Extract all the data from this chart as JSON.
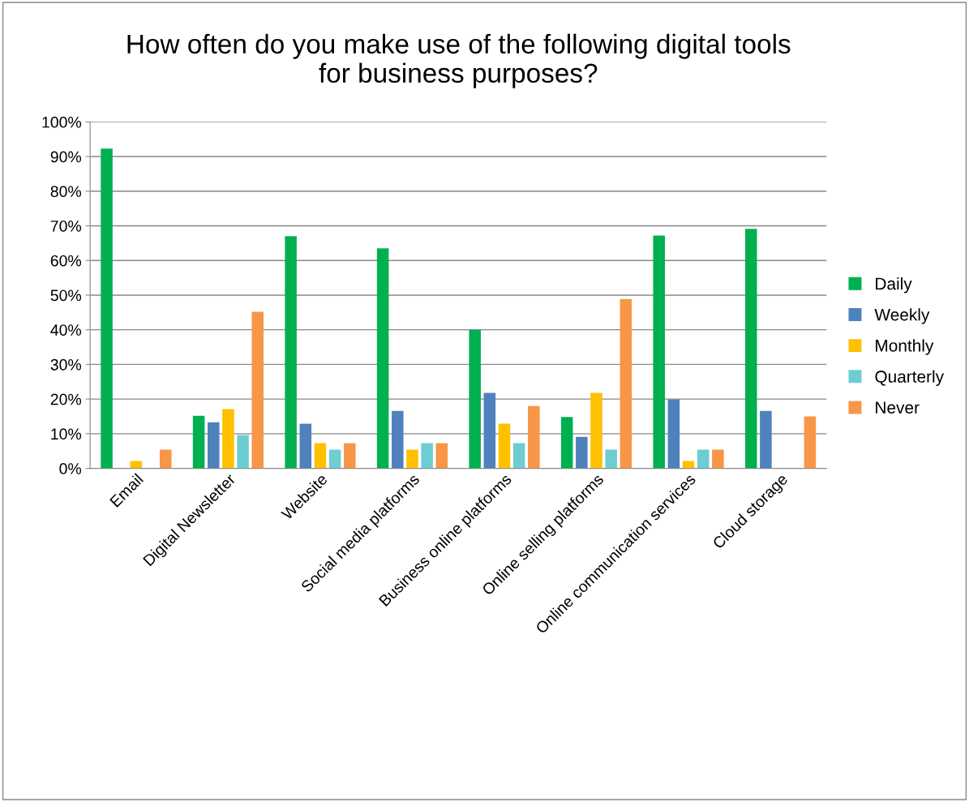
{
  "chart_data": {
    "type": "bar",
    "title": "How often do you make use of the following digital tools\nfor business purposes?",
    "categories": [
      "Email",
      "Digital Newsletter",
      "Website",
      "Social media platforms",
      "Business online platforms",
      "Online selling platforms",
      "Online communication services",
      "Cloud storage"
    ],
    "series": [
      {
        "name": "Daily",
        "color": "#00b050",
        "values": [
          92.3,
          15.2,
          67,
          63.5,
          40,
          14.8,
          67.2,
          69.1
        ]
      },
      {
        "name": "Weekly",
        "color": "#4f81bd",
        "values": [
          0,
          13.3,
          12.9,
          16.6,
          21.8,
          9.1,
          19.9,
          16.6
        ]
      },
      {
        "name": "Monthly",
        "color": "#ffc000",
        "values": [
          2.1,
          17.1,
          7.3,
          5.4,
          12.9,
          21.8,
          2.1,
          0
        ]
      },
      {
        "name": "Quarterly",
        "color": "#6ecdd0",
        "values": [
          0,
          9.6,
          5.4,
          7.3,
          7.3,
          5.4,
          5.4,
          0
        ]
      },
      {
        "name": "Never",
        "color": "#f79646",
        "values": [
          5.4,
          45.2,
          7.3,
          7.3,
          18,
          48.9,
          5.4,
          15
        ]
      }
    ],
    "ylim": [
      0,
      100
    ],
    "yticks": [
      {
        "value": 0,
        "label": "0%"
      },
      {
        "value": 10,
        "label": "10%"
      },
      {
        "value": 20,
        "label": "20%"
      },
      {
        "value": 30,
        "label": "30%"
      },
      {
        "value": 40,
        "label": "40%"
      },
      {
        "value": 50,
        "label": "50%"
      },
      {
        "value": 60,
        "label": "60%"
      },
      {
        "value": 70,
        "label": "70%"
      },
      {
        "value": 80,
        "label": "80%"
      },
      {
        "value": 90,
        "label": "90%"
      },
      {
        "value": 100,
        "label": "100%"
      }
    ],
    "grid": "y",
    "legend": "right"
  }
}
